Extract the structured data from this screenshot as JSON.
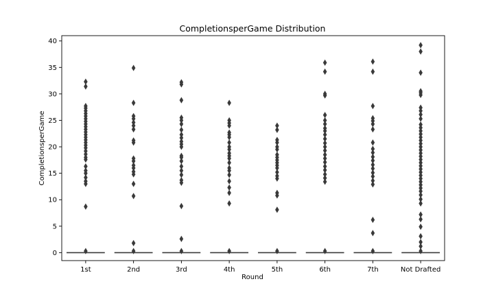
{
  "chart_data": {
    "type": "boxplot",
    "title": "CompletionsperGame Distribution",
    "xlabel": "Round",
    "ylabel": "CompletionsperGame",
    "ylim": [
      -1.5,
      41
    ],
    "yticks": [
      0,
      5,
      10,
      15,
      20,
      25,
      30,
      35,
      40
    ],
    "grid": false,
    "legend": "none",
    "categories": [
      "1st",
      "2nd",
      "3rd",
      "4th",
      "5th",
      "6th",
      "7th",
      "Not Drafted"
    ],
    "box": {
      "q1": 0,
      "median": 0,
      "q3": 0,
      "whisker_low": 0,
      "whisker_high": 0
    },
    "outliers": [
      [
        0.3,
        8.7,
        13,
        13.5,
        14.2,
        15,
        15.5,
        16.3,
        17.6,
        18,
        18.6,
        19.2,
        19.8,
        20.3,
        20.8,
        21.3,
        21.8,
        22.3,
        22.8,
        23.3,
        23.8,
        24.3,
        24.8,
        25.3,
        25.8,
        26.3,
        26.8,
        27.3,
        27.7,
        31.4,
        32.3
      ],
      [
        0.3,
        1.8,
        10.7,
        13,
        14.8,
        15.3,
        16,
        16.5,
        17.3,
        17.8,
        20.8,
        21.2,
        23.3,
        24,
        24.6,
        25.3,
        25.8,
        28.3,
        34.9
      ],
      [
        0.3,
        2.6,
        8.8,
        13.2,
        13.7,
        14.7,
        15.5,
        16.3,
        17.3,
        18,
        18.3,
        20,
        20.5,
        21,
        21.7,
        22.3,
        23.2,
        24.3,
        25,
        25.5,
        28.8,
        31.8,
        32.2
      ],
      [
        0.3,
        9.3,
        11.3,
        12.3,
        13.5,
        14.7,
        15.5,
        16,
        17,
        17.8,
        18.3,
        18.8,
        19.5,
        20,
        20.8,
        21.8,
        22.3,
        22.7,
        24,
        24.5,
        25,
        28.3
      ],
      [
        0.3,
        8.1,
        10.8,
        11.3,
        14,
        14.5,
        15.2,
        16,
        16.5,
        17,
        17.5,
        18,
        18.5,
        19.5,
        20,
        20.8,
        21.3,
        23.2,
        24
      ],
      [
        0.3,
        13.4,
        14.1,
        14.8,
        15.6,
        16.3,
        17.1,
        17.8,
        18.5,
        19.3,
        20,
        20.7,
        21.5,
        22.3,
        23,
        23.5,
        24.3,
        25,
        26,
        29.7,
        30,
        34.2,
        35.9
      ],
      [
        0.3,
        3.7,
        6.2,
        12.9,
        13.6,
        14.4,
        15.1,
        15.9,
        16.6,
        17.4,
        18.1,
        18.9,
        19.6,
        20.8,
        23.3,
        24.3,
        24.9,
        25.4,
        27.7,
        34.2,
        36.1
      ],
      [
        0.3,
        1.2,
        2,
        3.1,
        4.9,
        6.3,
        7.2,
        9.3,
        10.1,
        10.9,
        11.6,
        12.2,
        12.8,
        13.4,
        14,
        14.6,
        15.2,
        15.8,
        16.4,
        17,
        17.6,
        18.2,
        18.8,
        19.4,
        20,
        20.6,
        21.2,
        21.8,
        22.4,
        23,
        23.6,
        24.2,
        25.3,
        26.1,
        26.8,
        27.4,
        29.8,
        30.2,
        30.5,
        34,
        38,
        39.2
      ]
    ]
  }
}
